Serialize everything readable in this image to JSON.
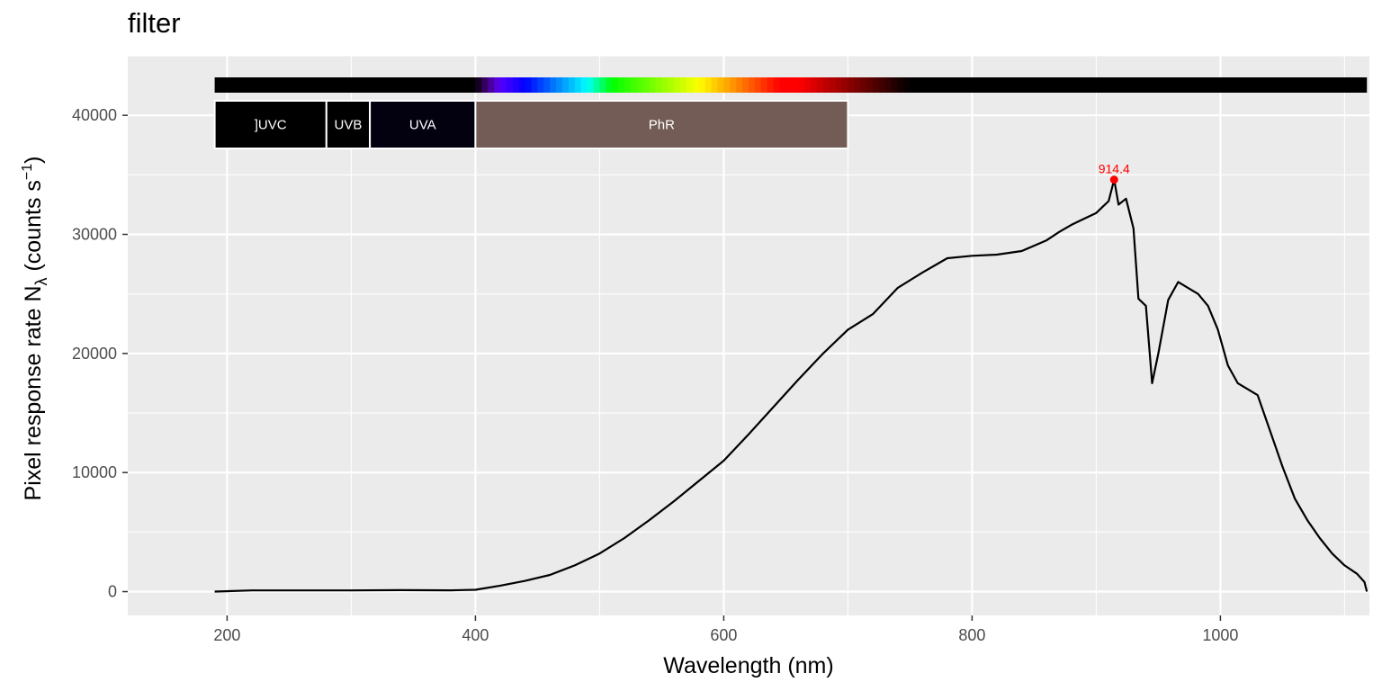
{
  "chart_data": {
    "type": "line",
    "title": "filter",
    "xlabel": "Wavelength (nm)",
    "ylabel": {
      "pre": "Pixel  response  rate  N",
      "sub": "λ",
      "mid": "  (counts  s",
      "sup": "−1",
      "post": ")"
    },
    "xlim": [
      120,
      1120
    ],
    "ylim": [
      -2000,
      45000
    ],
    "x_ticks": [
      200,
      400,
      600,
      800,
      1000
    ],
    "x_tick_labels": [
      "200",
      "400",
      "600",
      "800",
      "1000"
    ],
    "y_ticks": [
      0,
      10000,
      20000,
      30000,
      40000
    ],
    "y_tick_labels": [
      "0",
      "10000",
      "20000",
      "30000",
      "40000"
    ],
    "grid": true,
    "series": [
      {
        "color": "#000000",
        "x": [
          190,
          220,
          260,
          300,
          340,
          380,
          400,
          420,
          440,
          460,
          480,
          500,
          520,
          540,
          560,
          580,
          600,
          620,
          640,
          660,
          680,
          700,
          720,
          740,
          760,
          780,
          800,
          820,
          840,
          860,
          870,
          880,
          890,
          900,
          905,
          910,
          914.4,
          918,
          924,
          930,
          934,
          940,
          945,
          950,
          958,
          966,
          974,
          982,
          990,
          998,
          1006,
          1014,
          1022,
          1030,
          1040,
          1050,
          1060,
          1070,
          1080,
          1090,
          1100,
          1110,
          1116,
          1118
        ],
        "y": [
          0,
          100,
          100,
          100,
          120,
          110,
          150,
          500,
          900,
          1400,
          2200,
          3200,
          4500,
          6000,
          7600,
          9300,
          11000,
          13200,
          15500,
          17800,
          20000,
          22000,
          23300,
          25500,
          26800,
          28000,
          28200,
          28300,
          28600,
          29500,
          30200,
          30800,
          31300,
          31800,
          32300,
          32800,
          34600,
          32500,
          33000,
          30500,
          24600,
          24000,
          17500,
          20000,
          24500,
          26000,
          25500,
          25000,
          24000,
          22000,
          19000,
          17500,
          17000,
          16500,
          13500,
          10500,
          7800,
          6000,
          4500,
          3200,
          2200,
          1500,
          800,
          0
        ]
      }
    ],
    "peak": {
      "x": 914.4,
      "y": 34600,
      "label": "914.4",
      "color": "#ff0000"
    },
    "bands": [
      {
        "label": "]UVC",
        "x0": 190,
        "x1": 280,
        "color": "#000000"
      },
      {
        "label": "UVB",
        "x0": 280,
        "x1": 315,
        "color": "#000000"
      },
      {
        "label": "UVA",
        "x0": 315,
        "x1": 400,
        "color": "#03000f"
      },
      {
        "label": "PhR",
        "x0": 400,
        "x1": 700,
        "color": "#735c55"
      }
    ],
    "spectrum_bar": {
      "x0": 190,
      "x1": 1118
    }
  }
}
